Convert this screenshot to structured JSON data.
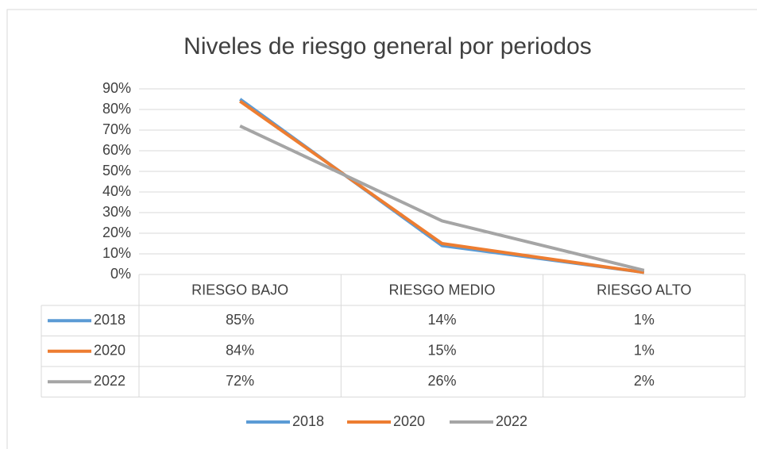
{
  "chart_data": {
    "type": "line",
    "title": "Niveles de riesgo general por periodos",
    "categories": [
      "RIESGO BAJO",
      "RIESGO MEDIO",
      "RIESGO ALTO"
    ],
    "series": [
      {
        "name": "2018",
        "color": "#5b9bd5",
        "values": [
          85,
          14,
          1
        ],
        "value_labels": [
          "85%",
          "14%",
          "1%"
        ]
      },
      {
        "name": "2020",
        "color": "#ed7d31",
        "values": [
          84,
          15,
          1
        ],
        "value_labels": [
          "84%",
          "15%",
          "1%"
        ]
      },
      {
        "name": "2022",
        "color": "#a5a5a5",
        "values": [
          72,
          26,
          2
        ],
        "value_labels": [
          "72%",
          "26%",
          "2%"
        ]
      }
    ],
    "ylim": [
      0,
      90
    ],
    "yticks": [
      {
        "value": 0,
        "label": "0%"
      },
      {
        "value": 10,
        "label": "10%"
      },
      {
        "value": 20,
        "label": "20%"
      },
      {
        "value": 30,
        "label": "30%"
      },
      {
        "value": 40,
        "label": "40%"
      },
      {
        "value": 50,
        "label": "50%"
      },
      {
        "value": 60,
        "label": "60%"
      },
      {
        "value": 70,
        "label": "70%"
      },
      {
        "value": 80,
        "label": "80%"
      },
      {
        "value": 90,
        "label": "90%"
      }
    ],
    "grid": true,
    "legend": "bottom"
  }
}
